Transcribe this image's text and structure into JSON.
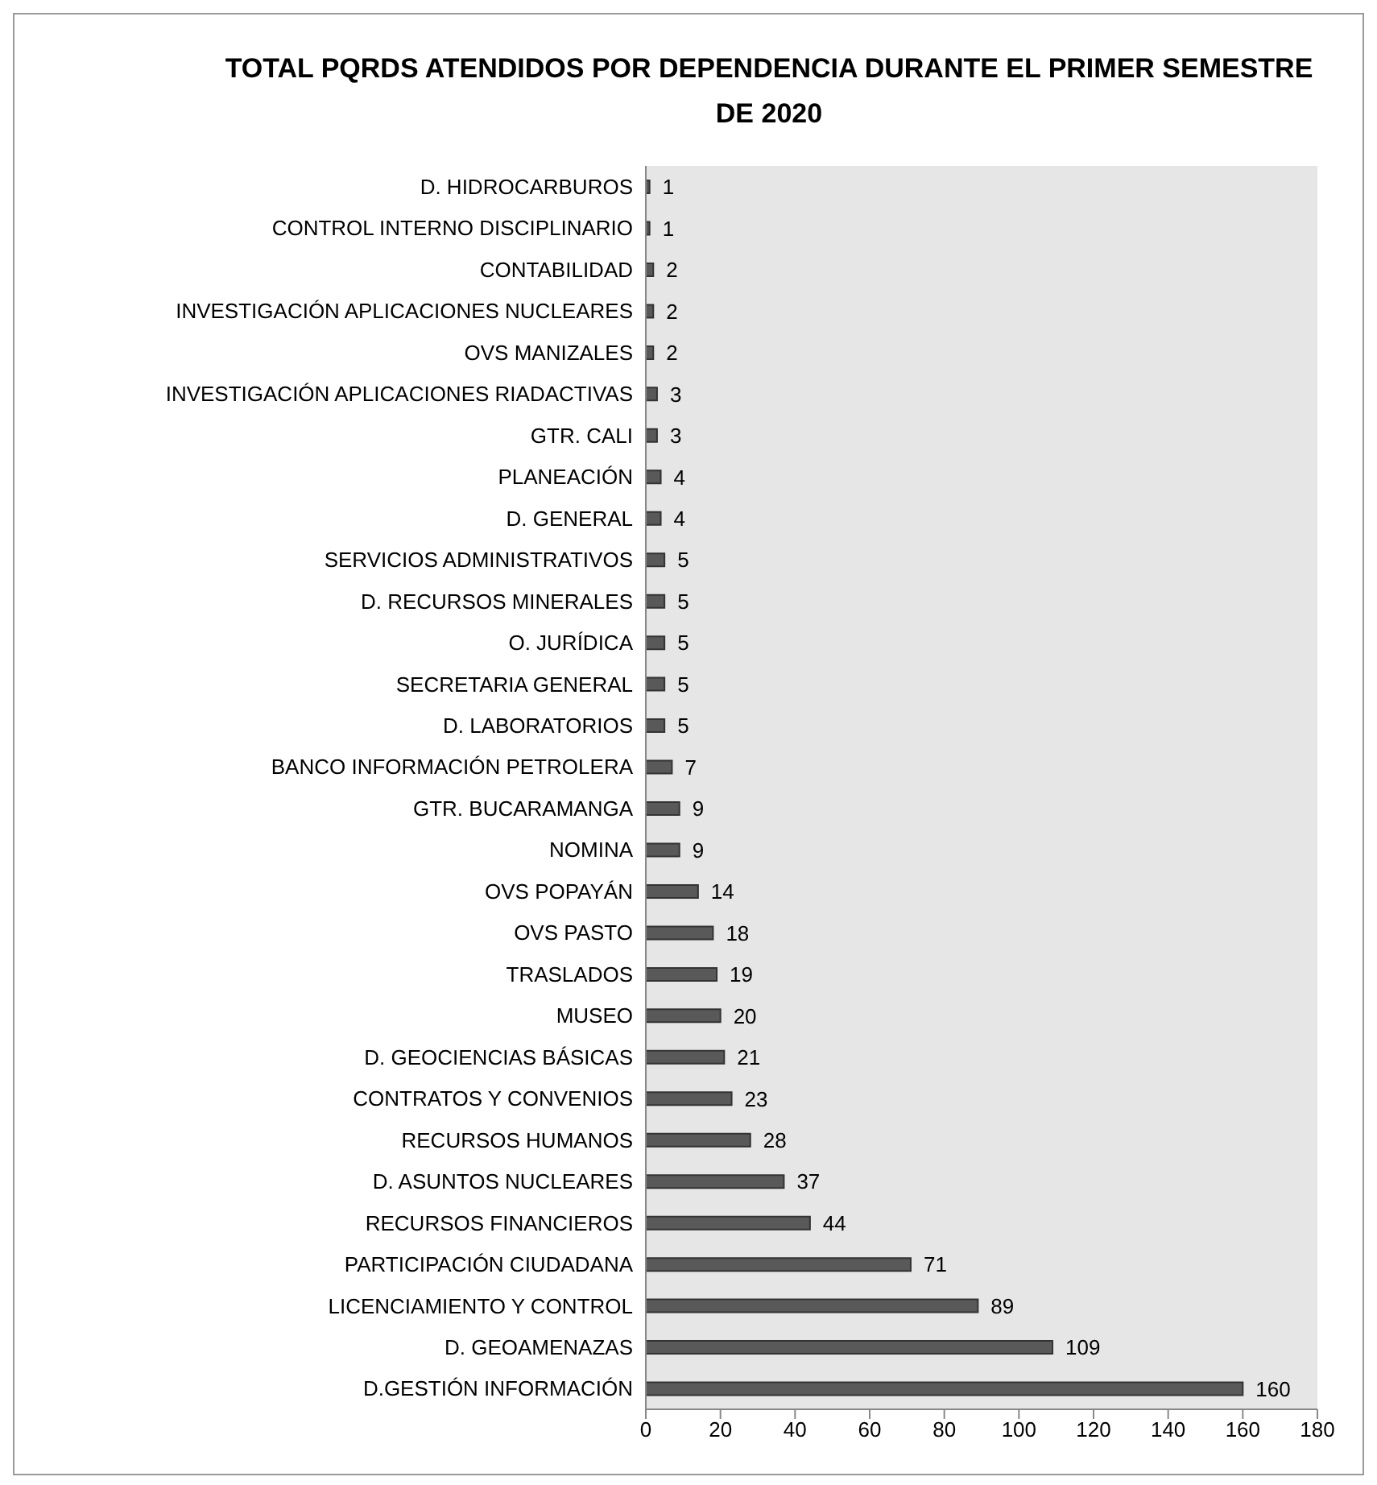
{
  "chart_data": {
    "type": "bar",
    "orientation": "horizontal",
    "title": "TOTAL PQRDS ATENDIDOS POR DEPENDENCIA DURANTE EL PRIMER SEMESTRE DE 2020",
    "categories": [
      "D. HIDROCARBUROS",
      "CONTROL INTERNO DISCIPLINARIO",
      "CONTABILIDAD",
      "INVESTIGACIÓN APLICACIONES NUCLEARES",
      "OVS MANIZALES",
      "INVESTIGACIÓN APLICACIONES RIADACTIVAS",
      "GTR. CALI",
      "PLANEACIÓN",
      "D. GENERAL",
      "SERVICIOS ADMINISTRATIVOS",
      "D. RECURSOS MINERALES",
      "O. JURÍDICA",
      "SECRETARIA GENERAL",
      "D. LABORATORIOS",
      "BANCO INFORMACIÓN PETROLERA",
      "GTR. BUCARAMANGA",
      "NOMINA",
      "OVS POPAYÁN",
      "OVS PASTO",
      "TRASLADOS",
      "MUSEO",
      "D. GEOCIENCIAS BÁSICAS",
      "CONTRATOS Y CONVENIOS",
      "RECURSOS HUMANOS",
      "D. ASUNTOS NUCLEARES",
      "RECURSOS FINANCIEROS",
      "PARTICIPACIÓN CIUDADANA",
      "LICENCIAMIENTO Y CONTROL",
      "D. GEOAMENAZAS",
      "D.GESTIÓN INFORMACIÓN"
    ],
    "values": [
      1,
      1,
      2,
      2,
      2,
      3,
      3,
      4,
      4,
      5,
      5,
      5,
      5,
      5,
      7,
      9,
      9,
      14,
      18,
      19,
      20,
      21,
      23,
      28,
      37,
      44,
      71,
      89,
      109,
      160
    ],
    "color": "#595959",
    "xlim": [
      0,
      180
    ],
    "xticks": [
      0,
      20,
      40,
      60,
      80,
      100,
      120,
      140,
      160,
      180
    ],
    "grid": false,
    "legend": false,
    "data_labels": true
  }
}
